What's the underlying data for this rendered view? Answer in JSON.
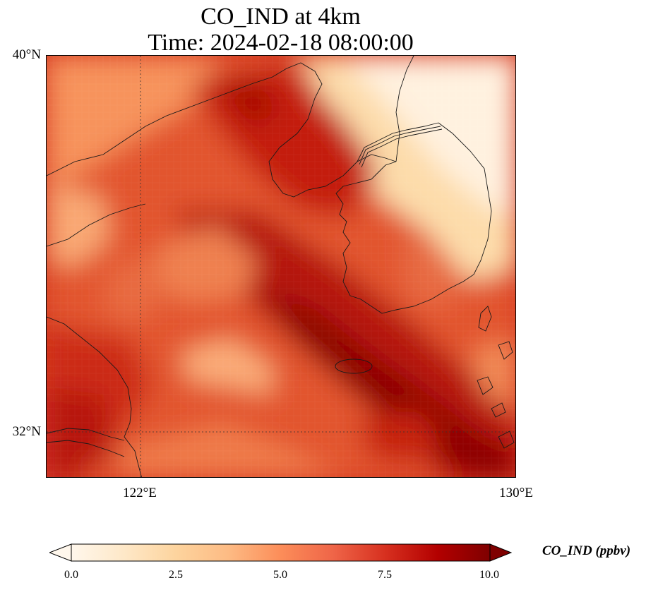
{
  "title": {
    "line1": "CO_IND at 4km",
    "line2": "Time: 2024-02-18 08:00:00"
  },
  "axes": {
    "lat_labels": [
      "40°N",
      "32°N"
    ],
    "lon_labels": [
      "122°E",
      "130°E"
    ],
    "lat_range": [
      31,
      40
    ],
    "lon_range": [
      120,
      130
    ]
  },
  "map": {
    "colormap": "OrRd",
    "gridlines": "dotted",
    "coastlines": true,
    "colors": {
      "low": "#fff7ec",
      "mid": "#f46d43",
      "high": "#7f0000"
    }
  },
  "colorbar": {
    "label": "CO_IND (ppbv)",
    "ticks": [
      "0.0",
      "2.5",
      "5.0",
      "7.5",
      "10.0"
    ],
    "vmin": 0,
    "vmax": 10,
    "extend": "both"
  }
}
